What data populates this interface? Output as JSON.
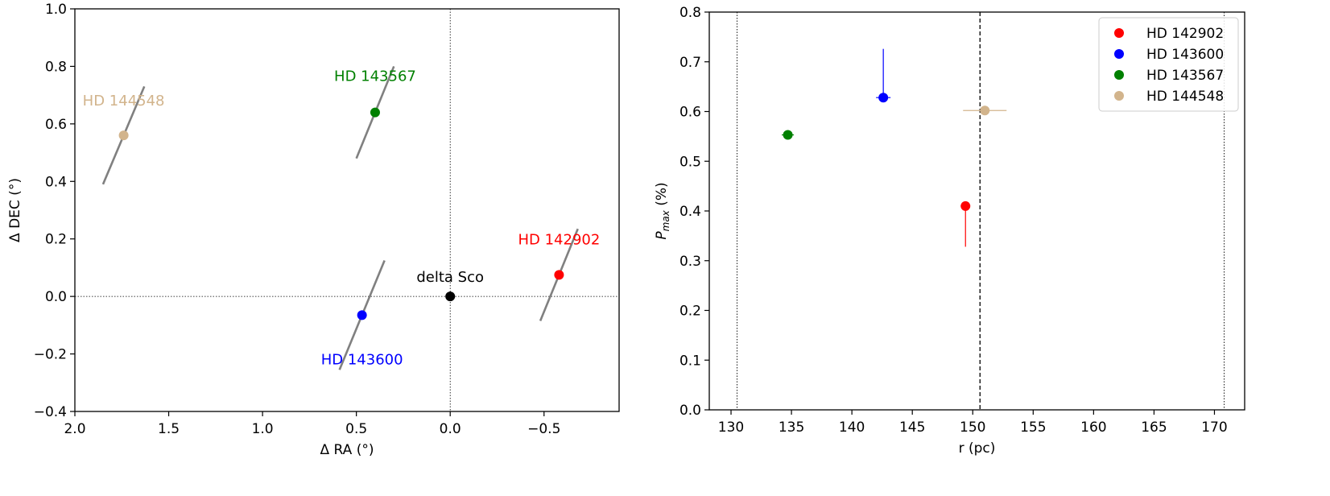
{
  "chart_data": [
    {
      "type": "scatter",
      "title": "",
      "xlabel": "Δ RA (°)",
      "ylabel": "Δ DEC (°)",
      "xlim": [
        2.0,
        -0.9
      ],
      "ylim": [
        -0.4,
        1.0
      ],
      "x_inverted": true,
      "xticks": [
        2.0,
        1.5,
        1.0,
        0.5,
        0.0,
        -0.5
      ],
      "xtick_labels": [
        "2.0",
        "1.5",
        "1.0",
        "0.5",
        "0.0",
        "−0.5"
      ],
      "yticks": [
        -0.4,
        -0.2,
        0.0,
        0.2,
        0.4,
        0.6,
        0.8,
        1.0
      ],
      "ytick_labels": [
        "−0.4",
        "−0.2",
        "0.0",
        "0.2",
        "0.4",
        "0.6",
        "0.8",
        "1.0"
      ],
      "reference_lines": [
        {
          "orientation": "vertical",
          "x": 0.0,
          "style": "dotted"
        },
        {
          "orientation": "horizontal",
          "y": 0.0,
          "style": "dotted"
        }
      ],
      "grid": false,
      "points": [
        {
          "label": "HD 142902",
          "x": -0.58,
          "y": 0.075,
          "color": "#ff0000",
          "pa_bar": {
            "dx": 0.1,
            "dy": 0.16
          }
        },
        {
          "label": "HD 143600",
          "x": 0.47,
          "y": -0.065,
          "color": "#0000ff",
          "pa_bar": {
            "dx": 0.12,
            "dy": 0.19
          }
        },
        {
          "label": "HD 143567",
          "x": 0.4,
          "y": 0.64,
          "color": "#008000",
          "pa_bar": {
            "dx": 0.1,
            "dy": 0.16
          }
        },
        {
          "label": "HD 144548",
          "x": 1.74,
          "y": 0.56,
          "color": "#d2b48c",
          "pa_bar": {
            "dx": 0.11,
            "dy": 0.17
          }
        },
        {
          "label": "delta Sco",
          "x": 0.0,
          "y": 0.0,
          "color": "#000000"
        }
      ]
    },
    {
      "type": "scatter",
      "title": "",
      "xlabel": "r (pc)",
      "ylabel": "P_max (%)",
      "xlim": [
        128.2,
        172.5
      ],
      "ylim": [
        0.0,
        0.8
      ],
      "xticks": [
        130,
        135,
        140,
        145,
        150,
        155,
        160,
        165,
        170
      ],
      "yticks": [
        0.0,
        0.1,
        0.2,
        0.3,
        0.4,
        0.5,
        0.6,
        0.7,
        0.8
      ],
      "ytick_labels": [
        "0.0",
        "0.1",
        "0.2",
        "0.3",
        "0.4",
        "0.5",
        "0.6",
        "0.7",
        "0.8"
      ],
      "reference_lines": [
        {
          "orientation": "vertical",
          "x": 130.5,
          "style": "dotted"
        },
        {
          "orientation": "vertical",
          "x": 150.6,
          "style": "dashed"
        },
        {
          "orientation": "vertical",
          "x": 170.8,
          "style": "dotted"
        }
      ],
      "grid": false,
      "legend_position": "top-right",
      "series": [
        {
          "name": "HD 142902",
          "color": "#ff0000",
          "x": 149.4,
          "y": 0.41,
          "yerr_low": 0.082,
          "yerr_high": 0.0,
          "xerr": 0.3
        },
        {
          "name": "HD 143600",
          "color": "#0000ff",
          "x": 142.6,
          "y": 0.628,
          "yerr_low": 0.0,
          "yerr_high": 0.098,
          "xerr": 0.6
        },
        {
          "name": "HD 143567",
          "color": "#008000",
          "x": 134.7,
          "y": 0.553,
          "yerr_low": 0.0,
          "yerr_high": 0.0,
          "xerr": 0.5
        },
        {
          "name": "HD 144548",
          "color": "#d2b48c",
          "x": 151.0,
          "y": 0.602,
          "yerr_low": 0.0,
          "yerr_high": 0.0,
          "xerr": 1.8
        }
      ]
    }
  ]
}
